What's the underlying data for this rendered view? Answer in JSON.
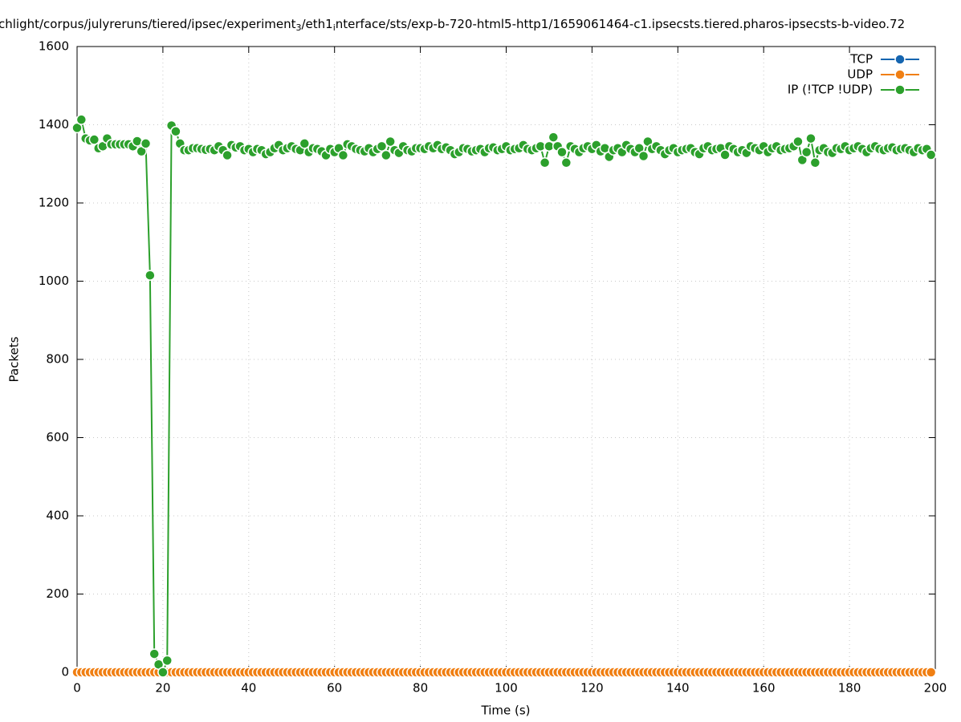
{
  "chart_data": {
    "type": "line",
    "title_parts": [
      {
        "text": "chlight/corpus/julyreruns/tiered/ipsec/experiment",
        "sub": false
      },
      {
        "text": "3",
        "sub": true
      },
      {
        "text": "/eth1",
        "sub": false
      },
      {
        "text": "i",
        "sub": true
      },
      {
        "text": "nterface/sts/exp-b-720-html5-http1/1659061464-c1.ipsecsts.tiered.pharos-ipsecsts-b-video.72",
        "sub": false
      }
    ],
    "x_label": "Time (s)",
    "y_label": "Packets",
    "xlim": [
      0,
      200
    ],
    "xticks": [
      0,
      20,
      40,
      60,
      80,
      100,
      120,
      140,
      160,
      180,
      200
    ],
    "ylim": [
      0,
      1600
    ],
    "yticks": [
      0,
      200,
      400,
      600,
      800,
      1000,
      1200,
      1400,
      1600
    ],
    "grid": true,
    "legend": "top-right",
    "x": [
      0,
      1,
      2,
      3,
      4,
      5,
      6,
      7,
      8,
      9,
      10,
      11,
      12,
      13,
      14,
      15,
      16,
      17,
      18,
      19,
      20,
      21,
      22,
      23,
      24,
      25,
      26,
      27,
      28,
      29,
      30,
      31,
      32,
      33,
      34,
      35,
      36,
      37,
      38,
      39,
      40,
      41,
      42,
      43,
      44,
      45,
      46,
      47,
      48,
      49,
      50,
      51,
      52,
      53,
      54,
      55,
      56,
      57,
      58,
      59,
      60,
      61,
      62,
      63,
      64,
      65,
      66,
      67,
      68,
      69,
      70,
      71,
      72,
      73,
      74,
      75,
      76,
      77,
      78,
      79,
      80,
      81,
      82,
      83,
      84,
      85,
      86,
      87,
      88,
      89,
      90,
      91,
      92,
      93,
      94,
      95,
      96,
      97,
      98,
      99,
      100,
      101,
      102,
      103,
      104,
      105,
      106,
      107,
      108,
      109,
      110,
      111,
      112,
      113,
      114,
      115,
      116,
      117,
      118,
      119,
      120,
      121,
      122,
      123,
      124,
      125,
      126,
      127,
      128,
      129,
      130,
      131,
      132,
      133,
      134,
      135,
      136,
      137,
      138,
      139,
      140,
      141,
      142,
      143,
      144,
      145,
      146,
      147,
      148,
      149,
      150,
      151,
      152,
      153,
      154,
      155,
      156,
      157,
      158,
      159,
      160,
      161,
      162,
      163,
      164,
      165,
      166,
      167,
      168,
      169,
      170,
      171,
      172,
      173,
      174,
      175,
      176,
      177,
      178,
      179,
      180,
      181,
      182,
      183,
      184,
      185,
      186,
      187,
      188,
      189,
      190,
      191,
      192,
      193,
      194,
      195,
      196,
      197,
      198,
      199
    ],
    "series": [
      {
        "name": "TCP",
        "color": "#1565b0",
        "values": [
          0,
          0,
          0,
          0,
          0,
          0,
          0,
          0,
          0,
          0,
          0,
          0,
          0,
          0,
          0,
          0,
          0,
          0,
          0,
          0,
          0,
          0,
          0,
          0,
          0,
          0,
          0,
          0,
          0,
          0,
          0,
          0,
          0,
          0,
          0,
          0,
          0,
          0,
          0,
          0,
          0,
          0,
          0,
          0,
          0,
          0,
          0,
          0,
          0,
          0,
          0,
          0,
          0,
          0,
          0,
          0,
          0,
          0,
          0,
          0,
          0,
          0,
          0,
          0,
          0,
          0,
          0,
          0,
          0,
          0,
          0,
          0,
          0,
          0,
          0,
          0,
          0,
          0,
          0,
          0,
          0,
          0,
          0,
          0,
          0,
          0,
          0,
          0,
          0,
          0,
          0,
          0,
          0,
          0,
          0,
          0,
          0,
          0,
          0,
          0,
          0,
          0,
          0,
          0,
          0,
          0,
          0,
          0,
          0,
          0,
          0,
          0,
          0,
          0,
          0,
          0,
          0,
          0,
          0,
          0,
          0,
          0,
          0,
          0,
          0,
          0,
          0,
          0,
          0,
          0,
          0,
          0,
          0,
          0,
          0,
          0,
          0,
          0,
          0,
          0,
          0,
          0,
          0,
          0,
          0,
          0,
          0,
          0,
          0,
          0,
          0,
          0,
          0,
          0,
          0,
          0,
          0,
          0,
          0,
          0,
          0,
          0,
          0,
          0,
          0,
          0,
          0,
          0,
          0,
          0,
          0,
          0,
          0,
          0,
          0,
          0,
          0,
          0,
          0,
          0,
          0,
          0,
          0,
          0,
          0,
          0,
          0,
          0,
          0,
          0,
          0,
          0,
          0,
          0,
          0,
          0,
          0,
          0,
          0,
          0
        ]
      },
      {
        "name": "UDP",
        "color": "#f07f13",
        "values": [
          0,
          0,
          0,
          0,
          0,
          0,
          0,
          0,
          0,
          0,
          0,
          0,
          0,
          0,
          0,
          0,
          0,
          0,
          0,
          0,
          0,
          0,
          0,
          0,
          0,
          0,
          0,
          0,
          0,
          0,
          0,
          0,
          0,
          0,
          0,
          0,
          0,
          0,
          0,
          0,
          0,
          0,
          0,
          0,
          0,
          0,
          0,
          0,
          0,
          0,
          0,
          0,
          0,
          0,
          0,
          0,
          0,
          0,
          0,
          0,
          0,
          0,
          0,
          0,
          0,
          0,
          0,
          0,
          0,
          0,
          0,
          0,
          0,
          0,
          0,
          0,
          0,
          0,
          0,
          0,
          0,
          0,
          0,
          0,
          0,
          0,
          0,
          0,
          0,
          0,
          0,
          0,
          0,
          0,
          0,
          0,
          0,
          0,
          0,
          0,
          0,
          0,
          0,
          0,
          0,
          0,
          0,
          0,
          0,
          0,
          0,
          0,
          0,
          0,
          0,
          0,
          0,
          0,
          0,
          0,
          0,
          0,
          0,
          0,
          0,
          0,
          0,
          0,
          0,
          0,
          0,
          0,
          0,
          0,
          0,
          0,
          0,
          0,
          0,
          0,
          0,
          0,
          0,
          0,
          0,
          0,
          0,
          0,
          0,
          0,
          0,
          0,
          0,
          0,
          0,
          0,
          0,
          0,
          0,
          0,
          0,
          0,
          0,
          0,
          0,
          0,
          0,
          0,
          0,
          0,
          0,
          0,
          0,
          0,
          0,
          0,
          0,
          0,
          0,
          0,
          0,
          0,
          0,
          0,
          0,
          0,
          0,
          0,
          0,
          0,
          0,
          0,
          0,
          0,
          0,
          0,
          0,
          0,
          0,
          0
        ]
      },
      {
        "name": "IP (!TCP  !UDP)",
        "color": "#2ca02c",
        "values": [
          1392,
          1413,
          1365,
          1360,
          1362,
          1340,
          1345,
          1365,
          1350,
          1350,
          1350,
          1350,
          1350,
          1345,
          1358,
          1332,
          1352,
          1015,
          47,
          20,
          0,
          30,
          1398,
          1383,
          1352,
          1335,
          1335,
          1340,
          1340,
          1338,
          1336,
          1338,
          1335,
          1345,
          1335,
          1322,
          1348,
          1342,
          1345,
          1335,
          1338,
          1330,
          1338,
          1335,
          1325,
          1330,
          1340,
          1348,
          1335,
          1340,
          1345,
          1338,
          1335,
          1352,
          1330,
          1340,
          1338,
          1332,
          1322,
          1338,
          1330,
          1340,
          1322,
          1350,
          1345,
          1338,
          1335,
          1332,
          1340,
          1330,
          1338,
          1345,
          1322,
          1357,
          1335,
          1328,
          1345,
          1335,
          1332,
          1340,
          1340,
          1338,
          1345,
          1340,
          1348,
          1338,
          1342,
          1335,
          1325,
          1330,
          1340,
          1338,
          1332,
          1335,
          1338,
          1330,
          1340,
          1342,
          1335,
          1338,
          1345,
          1335,
          1338,
          1340,
          1348,
          1338,
          1335,
          1340,
          1345,
          1303,
          1345,
          1368,
          1345,
          1330,
          1303,
          1345,
          1338,
          1330,
          1340,
          1345,
          1338,
          1348,
          1332,
          1340,
          1318,
          1335,
          1340,
          1330,
          1348,
          1338,
          1330,
          1340,
          1320,
          1357,
          1338,
          1345,
          1335,
          1325,
          1335,
          1340,
          1330,
          1335,
          1338,
          1340,
          1330,
          1325,
          1340,
          1345,
          1335,
          1338,
          1340,
          1323,
          1345,
          1338,
          1330,
          1335,
          1328,
          1345,
          1340,
          1335,
          1345,
          1330,
          1340,
          1345,
          1335,
          1338,
          1340,
          1345,
          1357,
          1310,
          1330,
          1365,
          1303,
          1335,
          1340,
          1330,
          1328,
          1340,
          1338,
          1345,
          1335,
          1340,
          1345,
          1338,
          1330,
          1340,
          1345,
          1338,
          1335,
          1340,
          1342,
          1335,
          1338,
          1340,
          1335,
          1330,
          1340,
          1335,
          1338,
          1323
        ]
      }
    ]
  }
}
